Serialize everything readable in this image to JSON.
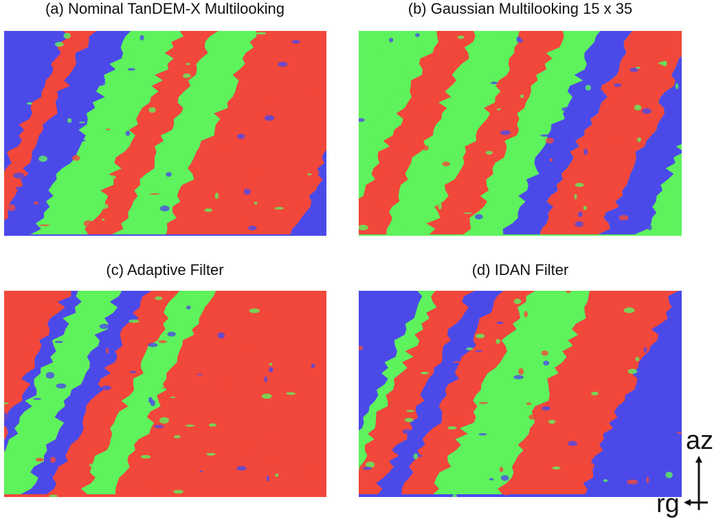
{
  "panels": [
    {
      "caption": "(a) Nominal TanDEM-X Multilooking"
    },
    {
      "caption": "(b) Gaussian Multilooking 15 x 35"
    },
    {
      "caption": "(c) Adaptive Filter"
    },
    {
      "caption": "(d) IDAN Filter"
    }
  ],
  "axes": {
    "vertical": "az",
    "horizontal": "rg"
  }
}
